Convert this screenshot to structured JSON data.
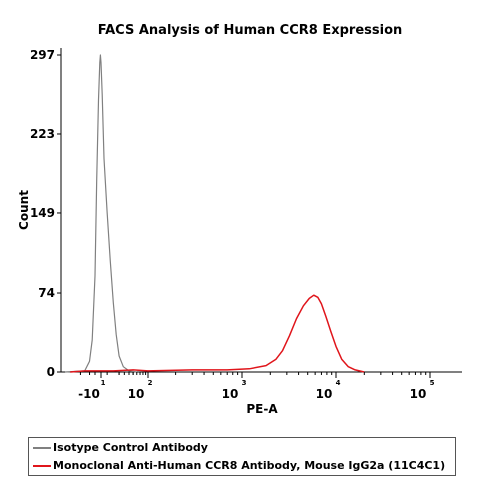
{
  "chart_data": {
    "type": "line",
    "title": "FACS Analysis of Human CCR8 Expression",
    "xlabel": "PE-A",
    "ylabel": "Count",
    "x_scale": "logicle",
    "ylim": [
      0,
      297
    ],
    "y_ticks": [
      0,
      74,
      149,
      223,
      297
    ],
    "x_ticks": [
      {
        "base": "-10",
        "exp": "1"
      },
      {
        "base": "10",
        "exp": "2"
      },
      {
        "base": "10",
        "exp": "3"
      },
      {
        "base": "10",
        "exp": "4"
      },
      {
        "base": "10",
        "exp": "5"
      }
    ],
    "grid": false,
    "legend_position": "bottom",
    "series": [
      {
        "name": "Isotype Control Antibody",
        "color": "#808080",
        "points": [
          {
            "x": -100,
            "y": 0
          },
          {
            "x": -40,
            "y": 1
          },
          {
            "x": -30,
            "y": 10
          },
          {
            "x": -25,
            "y": 30
          },
          {
            "x": -20,
            "y": 90
          },
          {
            "x": -17,
            "y": 180
          },
          {
            "x": -14,
            "y": 255
          },
          {
            "x": -12,
            "y": 290
          },
          {
            "x": -11,
            "y": 297
          },
          {
            "x": -10,
            "y": 290
          },
          {
            "x": -8,
            "y": 260
          },
          {
            "x": -5,
            "y": 200
          },
          {
            "x": 0,
            "y": 150
          },
          {
            "x": 5,
            "y": 105
          },
          {
            "x": 10,
            "y": 65
          },
          {
            "x": 15,
            "y": 35
          },
          {
            "x": 20,
            "y": 15
          },
          {
            "x": 28,
            "y": 5
          },
          {
            "x": 40,
            "y": 1
          },
          {
            "x": 60,
            "y": 0
          }
        ]
      },
      {
        "name": "Monoclonal Anti-Human CCR8 Antibody, Mouse IgG2a (11C4C1)",
        "color": "#e0151b",
        "points": [
          {
            "x": -80,
            "y": 0
          },
          {
            "x": -40,
            "y": 1
          },
          {
            "x": 10,
            "y": 1
          },
          {
            "x": 50,
            "y": 2
          },
          {
            "x": 100,
            "y": 1
          },
          {
            "x": 300,
            "y": 2
          },
          {
            "x": 700,
            "y": 2
          },
          {
            "x": 1200,
            "y": 3
          },
          {
            "x": 1800,
            "y": 6
          },
          {
            "x": 2300,
            "y": 12
          },
          {
            "x": 2700,
            "y": 20
          },
          {
            "x": 3200,
            "y": 34
          },
          {
            "x": 3800,
            "y": 50
          },
          {
            "x": 4500,
            "y": 62
          },
          {
            "x": 5200,
            "y": 69
          },
          {
            "x": 5800,
            "y": 72
          },
          {
            "x": 6400,
            "y": 70
          },
          {
            "x": 7000,
            "y": 64
          },
          {
            "x": 7800,
            "y": 52
          },
          {
            "x": 8800,
            "y": 38
          },
          {
            "x": 10000,
            "y": 24
          },
          {
            "x": 11500,
            "y": 12
          },
          {
            "x": 13500,
            "y": 5
          },
          {
            "x": 16000,
            "y": 2
          },
          {
            "x": 20000,
            "y": 0
          }
        ]
      }
    ]
  }
}
